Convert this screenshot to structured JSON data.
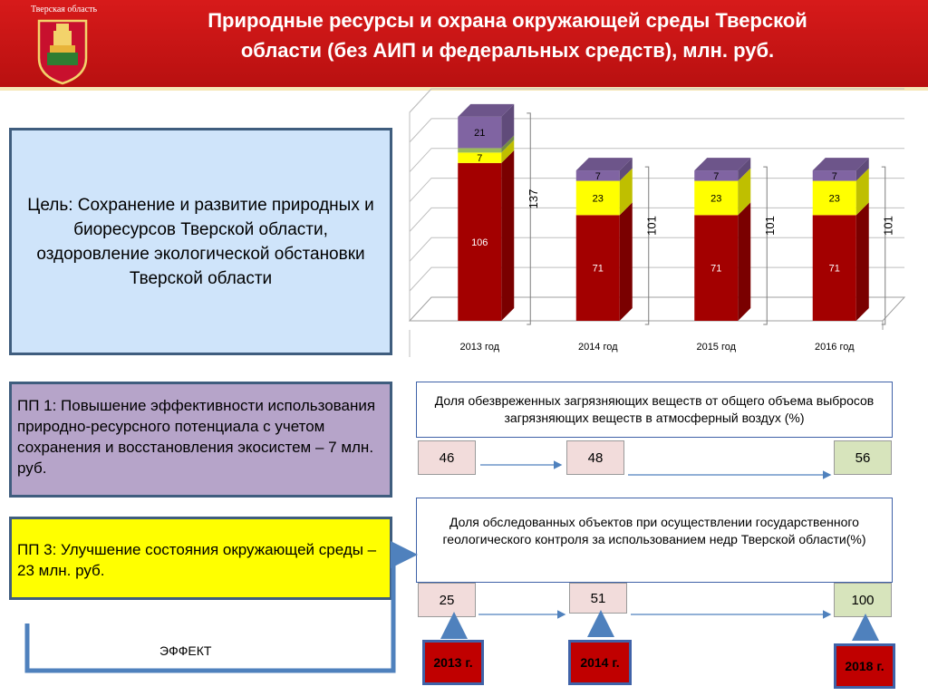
{
  "header": {
    "region": "Тверская область",
    "title_line1": "Природные ресурсы и охрана окружающей среды Тверской",
    "title_line2": "области (без АИП и федеральных средств), млн. руб."
  },
  "goal": "Цель: Сохранение и развитие природных и биоресурсов Тверской области, оздоровление экологической обстановки Тверской области",
  "pp1": "ПП 1: Повышение эффективности использования природно-ресурсного потенциала с учетом сохранения и восстановления экосистем – 7 млн. руб.",
  "pp3": "ПП 3: Улучшение состояния окружающей среды – 23 млн. руб.",
  "effect": "ЭФФЕКТ",
  "colors": {
    "red": "#a30000",
    "yellow": "#ffff00",
    "green": "#9bbb59",
    "purple": "#8064a2"
  },
  "chart_data": {
    "type": "bar",
    "stacked": true,
    "categories": [
      "2013 год",
      "2014 год",
      "2015 год",
      "2016 год"
    ],
    "series": [
      {
        "values": [
          106,
          71,
          71,
          71
        ],
        "color": "#a30000"
      },
      {
        "values": [
          7,
          23,
          23,
          23
        ],
        "color": "#ffff00"
      },
      {
        "values": [
          3,
          0,
          0,
          0
        ],
        "color": "#9bbb59"
      },
      {
        "values": [
          21,
          7,
          7,
          7
        ],
        "color": "#8064a2"
      }
    ],
    "totals": [
      137,
      101,
      101,
      101
    ],
    "ylim": [
      0,
      140
    ],
    "grid": true
  },
  "indicator1": {
    "title": "Доля  обезвреженных загрязняющих веществ от общего объема выбросов загрязняющих веществ  в атмосферный воздух (%)",
    "values": [
      "46",
      "48",
      "56"
    ]
  },
  "indicator2": {
    "title": "Доля обследованных объектов при осуществлении государственного геологического контроля за использованием недр Тверской области(%)",
    "values": [
      "25",
      "51",
      "100"
    ]
  },
  "years": [
    "2013 г.",
    "2014 г.",
    "2018 г."
  ]
}
